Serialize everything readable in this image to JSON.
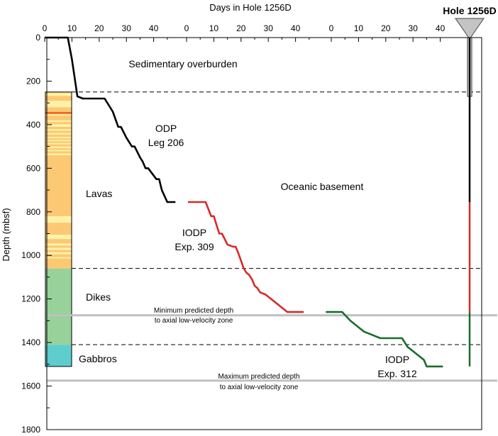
{
  "chart_data": {
    "type": "line",
    "title": "Days in Hole 1256D",
    "ylabel": "Depth (mbsf)",
    "xlabel": "",
    "ylim": [
      0,
      1800
    ],
    "y_ticks": [
      "0",
      "200",
      "400",
      "600",
      "800",
      "1000",
      "1200",
      "1400",
      "1600",
      "1800"
    ],
    "x_ticks": [
      "0",
      "10",
      "20",
      "30",
      "40"
    ],
    "grid": false,
    "colors": {
      "leg206": "#000000",
      "exp309": "#d62a2a",
      "exp312": "#1a6b2e",
      "lavas": "#fdc873",
      "lavas_light": "#fff2a8",
      "lavas_dark": "#f0601a",
      "dikes": "#98d19a",
      "gabbros": "#5ecdcd",
      "predicted_line": "#c0c0c0",
      "hole_title": "#e0141e"
    },
    "series": [
      {
        "name": "ODP Leg 206",
        "color_key": "leg206",
        "label_lines": [
          "ODP",
          "Leg 206"
        ],
        "points": [
          [
            0,
            0
          ],
          [
            8.5,
            0
          ],
          [
            10,
            100
          ],
          [
            12,
            270
          ],
          [
            14,
            280
          ],
          [
            22,
            280
          ],
          [
            25,
            340
          ],
          [
            27,
            410
          ],
          [
            28,
            410
          ],
          [
            30,
            460
          ],
          [
            32,
            500
          ],
          [
            33,
            500
          ],
          [
            35,
            550
          ],
          [
            36,
            570
          ],
          [
            37,
            600
          ],
          [
            38,
            600
          ],
          [
            41,
            650
          ],
          [
            42,
            650
          ],
          [
            43,
            700
          ],
          [
            45,
            755
          ],
          [
            48,
            755
          ]
        ]
      },
      {
        "name": "IODP Exp. 309",
        "color_key": "exp309",
        "label_lines": [
          "IODP",
          "Exp. 309"
        ],
        "points": [
          [
            0.5,
            755
          ],
          [
            7,
            755
          ],
          [
            9,
            820
          ],
          [
            10,
            820
          ],
          [
            11,
            860
          ],
          [
            12,
            900
          ],
          [
            13,
            900
          ],
          [
            15,
            950
          ],
          [
            17,
            960
          ],
          [
            18,
            960
          ],
          [
            19,
            990
          ],
          [
            21,
            1060
          ],
          [
            22,
            1080
          ],
          [
            23,
            1090
          ],
          [
            24,
            1110
          ],
          [
            25,
            1140
          ],
          [
            26,
            1150
          ],
          [
            27,
            1170
          ],
          [
            29,
            1180
          ],
          [
            30,
            1190
          ],
          [
            32,
            1210
          ],
          [
            34,
            1230
          ],
          [
            37,
            1260
          ],
          [
            43,
            1260
          ]
        ]
      },
      {
        "name": "IODP Exp. 312",
        "color_key": "exp312",
        "label_lines": [
          "IODP",
          "Exp. 312"
        ],
        "points": [
          [
            -2,
            1260
          ],
          [
            4,
            1260
          ],
          [
            7,
            1300
          ],
          [
            9,
            1320
          ],
          [
            10,
            1330
          ],
          [
            12,
            1350
          ],
          [
            14,
            1360
          ],
          [
            16,
            1370
          ],
          [
            18,
            1380
          ],
          [
            26,
            1380
          ],
          [
            28,
            1420
          ],
          [
            30,
            1440
          ],
          [
            32,
            1460
          ],
          [
            34,
            1480
          ],
          [
            35,
            1510
          ],
          [
            41,
            1510
          ]
        ]
      }
    ],
    "depth_lines": [
      {
        "depth": 250,
        "style": "dashed"
      },
      {
        "depth": 1060,
        "style": "dashed"
      },
      {
        "depth": 1410,
        "style": "dashed"
      },
      {
        "depth": 1275,
        "style": "solid-gray"
      },
      {
        "depth": 1575,
        "style": "solid-gray"
      }
    ],
    "lithology": [
      {
        "name": "Lavas",
        "from": 250,
        "to": 1060,
        "color_key": "lavas"
      },
      {
        "name": "Dikes",
        "from": 1060,
        "to": 1410,
        "color_key": "dikes"
      },
      {
        "name": "Gabbros",
        "from": 1410,
        "to": 1510,
        "color_key": "gabbros"
      }
    ],
    "lava_stripes": [
      {
        "from": 255,
        "to": 268,
        "color_key": "lavas_light"
      },
      {
        "from": 290,
        "to": 320,
        "color_key": "lavas_light"
      },
      {
        "from": 342,
        "to": 350,
        "color_key": "lavas_dark"
      },
      {
        "from": 352,
        "to": 358,
        "color_key": "lavas_light"
      },
      {
        "from": 380,
        "to": 388,
        "color_key": "lavas_light"
      },
      {
        "from": 398,
        "to": 410,
        "color_key": "lavas_light"
      },
      {
        "from": 420,
        "to": 428,
        "color_key": "lavas_light"
      },
      {
        "from": 438,
        "to": 445,
        "color_key": "lavas_light"
      },
      {
        "from": 456,
        "to": 462,
        "color_key": "lavas_light"
      },
      {
        "from": 470,
        "to": 476,
        "color_key": "lavas_light"
      },
      {
        "from": 484,
        "to": 490,
        "color_key": "lavas_light"
      },
      {
        "from": 500,
        "to": 508,
        "color_key": "lavas_light"
      },
      {
        "from": 516,
        "to": 522,
        "color_key": "lavas_light"
      },
      {
        "from": 532,
        "to": 540,
        "color_key": "lavas_light"
      },
      {
        "from": 820,
        "to": 850,
        "color_key": "lavas_light"
      },
      {
        "from": 905,
        "to": 925,
        "color_key": "lavas_light"
      },
      {
        "from": 945,
        "to": 955,
        "color_key": "lavas_light"
      },
      {
        "from": 965,
        "to": 975,
        "color_key": "lavas_light"
      },
      {
        "from": 985,
        "to": 995,
        "color_key": "lavas_light"
      },
      {
        "from": 1008,
        "to": 1014,
        "color_key": "lavas_light"
      }
    ],
    "hole": {
      "title": "Hole 1256D",
      "segments": [
        {
          "from": 0,
          "to": 755,
          "color_key": "leg206"
        },
        {
          "from": 755,
          "to": 1260,
          "color_key": "exp309"
        },
        {
          "from": 1260,
          "to": 1510,
          "color_key": "exp312"
        }
      ]
    },
    "annotations": {
      "sedimentary": "Sedimentary overburden",
      "oceanic": "Oceanic basement",
      "min_predicted": [
        "Minimum predicted depth",
        "to axial low-velocity zone"
      ],
      "max_predicted": [
        "Maximum predicted depth",
        "to axial low-velocity zone"
      ]
    }
  }
}
